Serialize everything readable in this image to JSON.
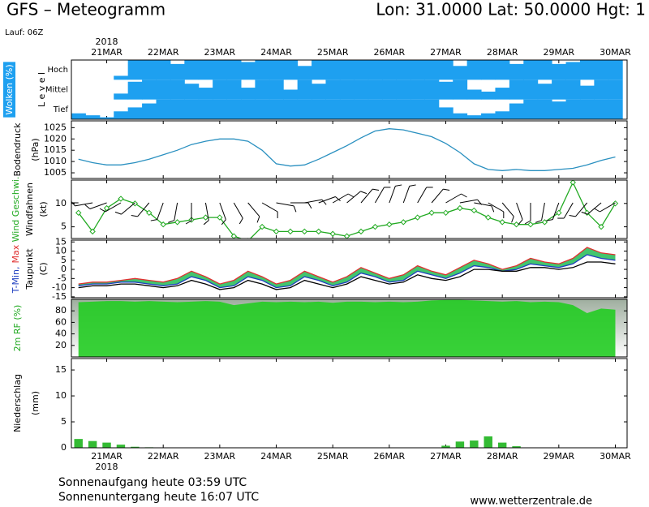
{
  "header": {
    "title": "GFS – Meteogramm",
    "location": "Lon: 31.0000 Lat: 50.0000 Hgt: 1",
    "run": "Lauf: 06Z"
  },
  "time_axis": {
    "x": [
      -12,
      -6,
      0,
      6,
      12,
      18,
      24,
      30,
      36,
      42,
      48,
      54,
      60,
      66,
      72,
      78,
      84,
      90,
      96,
      102,
      108,
      114,
      120,
      126,
      132,
      138,
      144,
      150,
      156,
      162,
      168,
      174,
      180,
      186,
      192,
      198,
      204,
      210,
      216
    ],
    "xlim": [
      -15,
      221
    ],
    "xticks": [
      {
        "value": 0,
        "label": "21MAR"
      },
      {
        "value": 24,
        "label": "22MAR"
      },
      {
        "value": 48,
        "label": "23MAR"
      },
      {
        "value": 72,
        "label": "24MAR"
      },
      {
        "value": 96,
        "label": "25MAR"
      },
      {
        "value": 120,
        "label": "26MAR"
      },
      {
        "value": 144,
        "label": "27MAR"
      },
      {
        "value": 168,
        "label": "28MAR"
      },
      {
        "value": 192,
        "label": "29MAR"
      },
      {
        "value": 216,
        "label": "30MAR"
      }
    ],
    "year": "2018"
  },
  "chart_data": [
    {
      "type": "cloud_cover",
      "color": "#1ea0f0",
      "ylabel": [
        [
          {
            "text": "Wolken (%)",
            "color": "#ffffff",
            "background": "#1ea0f0"
          }
        ],
        [
          {
            "text": "L e v e l"
          }
        ]
      ],
      "series": [
        {
          "name": "Hoch",
          "values": [
            0,
            0,
            0,
            20,
            100,
            100,
            100,
            80,
            100,
            100,
            100,
            100,
            90,
            100,
            100,
            100,
            70,
            100,
            100,
            100,
            100,
            100,
            100,
            100,
            100,
            100,
            100,
            70,
            100,
            100,
            100,
            80,
            100,
            100,
            80,
            90,
            100,
            100,
            100
          ]
        },
        {
          "name": "Mittel",
          "values": [
            0,
            0,
            0,
            30,
            90,
            100,
            100,
            100,
            80,
            60,
            100,
            100,
            60,
            100,
            100,
            50,
            100,
            80,
            100,
            100,
            100,
            100,
            100,
            100,
            100,
            100,
            90,
            100,
            50,
            40,
            60,
            100,
            100,
            80,
            100,
            100,
            70,
            100,
            100
          ]
        },
        {
          "name": "Tief",
          "values": [
            30,
            20,
            10,
            40,
            60,
            80,
            100,
            100,
            100,
            100,
            100,
            100,
            100,
            100,
            100,
            100,
            100,
            100,
            100,
            100,
            100,
            100,
            100,
            100,
            100,
            100,
            60,
            30,
            20,
            30,
            40,
            80,
            100,
            100,
            90,
            100,
            100,
            100,
            100
          ]
        }
      ]
    },
    {
      "type": "line",
      "ylabel": [
        [
          {
            "text": "Bodendruck"
          }
        ],
        [
          {
            "text": "(hPa)"
          }
        ]
      ],
      "ylim": [
        1002.5,
        1028
      ],
      "yticks": [
        1005,
        1010,
        1015,
        1020,
        1025
      ],
      "series": [
        {
          "color": "#2a90c0",
          "values": [
            1011,
            1009.5,
            1008.5,
            1008.5,
            1009.5,
            1011,
            1013,
            1015,
            1017.5,
            1019,
            1020,
            1020,
            1019,
            1015,
            1009,
            1008,
            1008.5,
            1011,
            1014,
            1017,
            1020.5,
            1023.5,
            1024.5,
            1024,
            1022.5,
            1021,
            1018,
            1014,
            1009,
            1006.5,
            1006,
            1006.5,
            1006,
            1006,
            1006.5,
            1007,
            1008.5,
            1010.5,
            1012
          ]
        }
      ]
    },
    {
      "type": "line",
      "ylabel": [
        [
          {
            "text": "Wind Geschwi.",
            "color": "#22aa22"
          }
        ],
        [
          {
            "text": "Windfahnen"
          }
        ],
        [
          {
            "text": "(kt)"
          }
        ]
      ],
      "ylim": [
        2.5,
        15
      ],
      "yticks": [
        5,
        10
      ],
      "marker": "diamond",
      "series": [
        {
          "color": "#22aa22",
          "values": [
            8,
            4,
            9,
            11,
            10,
            8,
            5.5,
            6,
            6.5,
            7,
            7,
            3,
            2,
            5,
            4,
            4,
            4,
            4,
            3.5,
            3,
            4,
            5,
            5.5,
            6,
            7,
            8,
            8,
            9,
            8.5,
            7,
            6,
            5.5,
            5.5,
            6,
            8,
            14.5,
            8,
            5,
            10
          ]
        }
      ],
      "wind_direction": [
        270,
        260,
        250,
        240,
        230,
        220,
        200,
        190,
        180,
        170,
        160,
        150,
        140,
        120,
        100,
        90,
        80,
        70,
        60,
        50,
        40,
        30,
        20,
        20,
        30,
        40,
        60,
        80,
        100,
        120,
        140,
        160,
        180,
        190,
        200,
        210,
        220,
        230,
        240
      ]
    },
    {
      "type": "range",
      "ylabel": [
        [
          {
            "text": "T-Min,",
            "color": "#2040c0"
          },
          {
            "text": "Max",
            "color": "#e03030"
          }
        ],
        [
          {
            "text": "Taupunkt"
          }
        ],
        [
          {
            "text": "(C)"
          }
        ]
      ],
      "ylim": [
        -15.5,
        16
      ],
      "yticks": [
        15,
        10,
        5,
        0,
        -5,
        -10,
        -15
      ],
      "fill": "#22bb55",
      "series": [
        {
          "color": "#2040c0",
          "values": [
            -9,
            -8,
            -8,
            -7,
            -7,
            -8,
            -9,
            -8,
            -4,
            -6,
            -10,
            -9,
            -4,
            -6,
            -10,
            -9,
            -4,
            -6,
            -9,
            -7,
            -2,
            -4,
            -7,
            -6,
            -1,
            -3,
            -5,
            -2,
            2,
            1,
            -1,
            0,
            3,
            2,
            1,
            3,
            8,
            6,
            5
          ]
        },
        {
          "color": "#e03030",
          "values": [
            -8,
            -7,
            -7,
            -6,
            -5,
            -6,
            -7,
            -5,
            -1,
            -4,
            -8,
            -6,
            -1,
            -4,
            -8,
            -6,
            -1,
            -4,
            -7,
            -4,
            1,
            -2,
            -5,
            -3,
            2,
            -1,
            -3,
            1,
            5,
            3,
            0,
            2,
            6,
            4,
            3,
            6,
            12,
            9,
            8
          ]
        },
        {
          "color": "#000000",
          "values": [
            -10,
            -9,
            -9,
            -8,
            -8,
            -9,
            -10,
            -9,
            -6,
            -8,
            -11,
            -10,
            -6,
            -8,
            -11,
            -10,
            -6,
            -8,
            -10,
            -8,
            -4,
            -6,
            -8,
            -7,
            -3,
            -5,
            -6,
            -4,
            0,
            0,
            -1,
            -1,
            1,
            1,
            0,
            1,
            4,
            4,
            3
          ]
        }
      ]
    },
    {
      "type": "area",
      "ylabel": [
        [
          {
            "text": "2m RF (%)",
            "color": "#22aa22"
          }
        ]
      ],
      "ylim": [
        0,
        100
      ],
      "yticks": [
        20,
        40,
        60,
        80
      ],
      "background_gradient": [
        "#9fae9f",
        "#ffffff"
      ],
      "series": [
        {
          "color": "#22cc22",
          "values": [
            95,
            96,
            97,
            97,
            96,
            97,
            96,
            95,
            96,
            97,
            96,
            90,
            93,
            96,
            95,
            96,
            95,
            96,
            94,
            96,
            96,
            95,
            96,
            95,
            96,
            98,
            99,
            99,
            98,
            97,
            96,
            97,
            95,
            96,
            95,
            90,
            76,
            84,
            82
          ]
        }
      ]
    },
    {
      "type": "bar",
      "ylabel": [
        [
          {
            "text": "Niederschlag"
          }
        ],
        [
          {
            "text": "(mm)"
          }
        ]
      ],
      "ylim": [
        0,
        17.2
      ],
      "yticks": [
        0,
        5,
        10,
        15
      ],
      "series": [
        {
          "color": "#33bb33",
          "values": [
            1.7,
            1.3,
            1.0,
            0.6,
            0.2,
            0.1,
            0,
            0,
            0,
            0,
            0,
            0,
            0,
            0,
            0,
            0,
            0,
            0,
            0,
            0,
            0,
            0,
            0,
            0,
            0,
            0,
            0.4,
            1.2,
            1.4,
            2.2,
            1.0,
            0.3,
            0,
            0,
            0,
            0,
            0,
            0,
            0
          ]
        }
      ]
    }
  ],
  "footer": {
    "sunrise": "Sonnenaufgang heute 03:59 UTC",
    "sunset": "Sonnenuntergang heute 16:07 UTC",
    "source": "www.wetterzentrale.de"
  }
}
